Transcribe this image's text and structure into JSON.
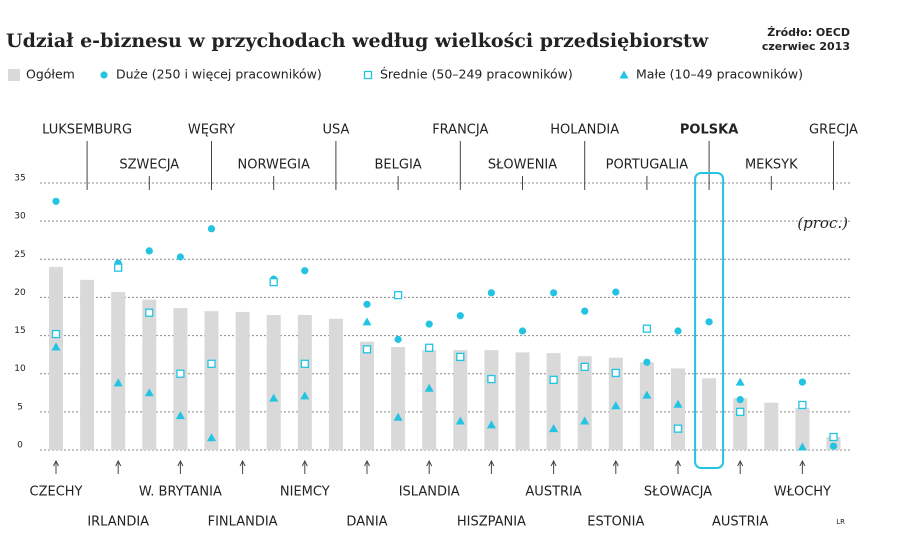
{
  "chart_data": {
    "type": "bar",
    "title": "Udział e-biznesu w przychodach według wielkości przedsiębiorstw",
    "source": [
      "Źródło: OECD",
      "czerwiec 2013"
    ],
    "unit_note": "(proc.)",
    "credit": "LR",
    "categories": [
      "CZECHY",
      "LUKSEMBURG",
      "IRLANDIA",
      "SZWECJA",
      "W. BRYTANIA",
      "WĘGRY",
      "FINLANDIA",
      "NORWEGIA",
      "NIEMCY",
      "USA",
      "DANIA",
      "BELGIA",
      "ISLANDIA",
      "FRANCJA",
      "HISZPANIA",
      "SŁOWENIA",
      "AUSTRIA",
      "HOLANDIA",
      "ESTONIA",
      "PORTUGALIA",
      "SŁOWACJA",
      "POLSKA",
      "AUSTRIA",
      "MEKSYK",
      "WŁOCHY",
      "GRECJA"
    ],
    "highlight": 21,
    "series": [
      {
        "name": "Ogółem",
        "marker": "bar",
        "color": "#d9d9d9",
        "values": [
          24.0,
          22.3,
          20.7,
          19.7,
          18.6,
          18.2,
          18.1,
          17.7,
          17.7,
          17.2,
          14.2,
          13.5,
          13.1,
          13.1,
          13.1,
          12.8,
          12.7,
          12.3,
          12.1,
          11.5,
          10.7,
          9.4,
          6.8,
          6.2,
          5.5,
          1.7
        ]
      },
      {
        "name": "Duże (250 i więcej pracowników)",
        "marker": "circle",
        "color": "#22c4e2",
        "values": [
          32.6,
          null,
          24.5,
          26.1,
          25.3,
          29.0,
          null,
          22.4,
          23.5,
          null,
          19.1,
          14.5,
          16.5,
          17.6,
          20.6,
          15.6,
          20.6,
          18.2,
          20.7,
          11.5,
          15.6,
          16.8,
          6.6,
          null,
          8.9,
          0.5
        ]
      },
      {
        "name": "Średnie (50–249 pracowników)",
        "marker": "square",
        "color": "#22c4e2",
        "values": [
          15.2,
          null,
          23.9,
          18.0,
          10.0,
          11.3,
          null,
          22.0,
          11.3,
          null,
          13.2,
          20.3,
          13.4,
          12.2,
          9.3,
          null,
          9.2,
          10.9,
          10.1,
          15.9,
          2.8,
          null,
          5.0,
          null,
          5.9,
          1.7
        ]
      },
      {
        "name": "Małe (10–49 pracowników)",
        "marker": "triangle",
        "color": "#22c4e2",
        "values": [
          13.5,
          null,
          8.8,
          7.5,
          4.5,
          1.6,
          null,
          6.8,
          7.1,
          null,
          16.8,
          4.3,
          8.1,
          3.8,
          3.3,
          null,
          2.8,
          3.8,
          5.8,
          7.2,
          6.0,
          null,
          8.9,
          null,
          0.4,
          null
        ]
      }
    ],
    "ylim": [
      0,
      35
    ],
    "yticks": [
      0,
      5,
      10,
      15,
      20,
      25,
      30,
      35
    ],
    "grid": true
  }
}
